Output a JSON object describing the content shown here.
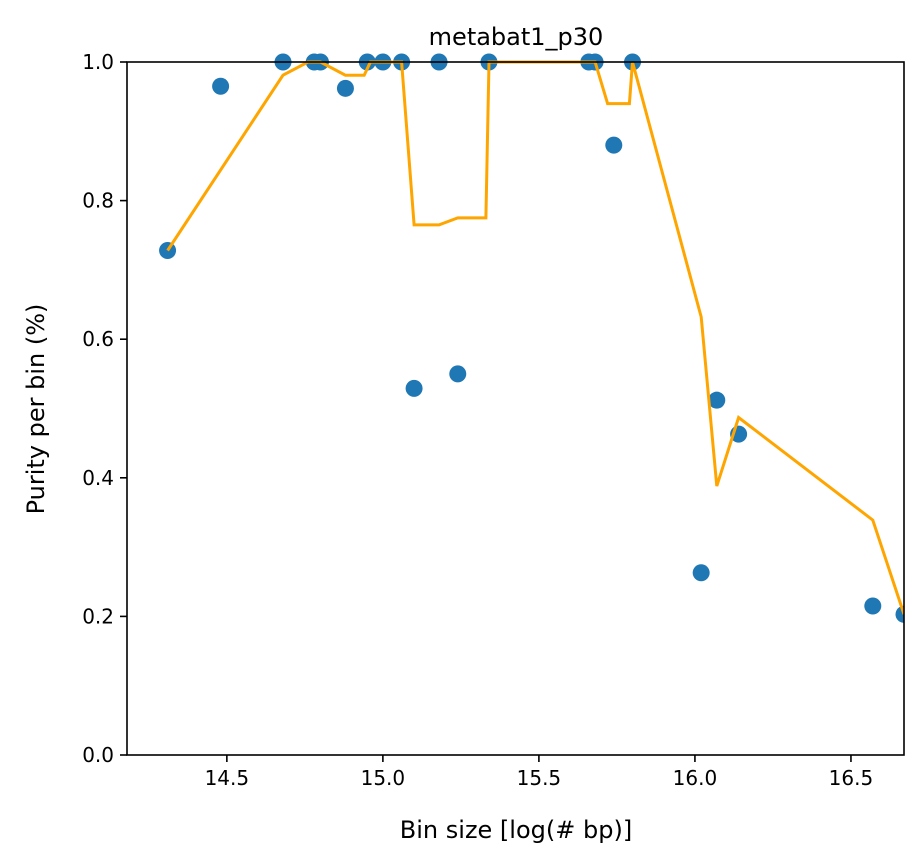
{
  "chart_data": {
    "type": "scatter",
    "title": "metabat1_p30",
    "xlabel": "Bin size [log(# bp)]",
    "ylabel": "Purity per bin (%)",
    "xlim": [
      14.18,
      16.67
    ],
    "ylim": [
      0.0,
      1.0
    ],
    "xticks": [
      14.5,
      15.0,
      15.5,
      16.0,
      16.5
    ],
    "xtick_labels": [
      "14.5",
      "15.0",
      "15.5",
      "16.0",
      "16.5"
    ],
    "yticks": [
      0.0,
      0.2,
      0.4,
      0.6,
      0.8,
      1.0
    ],
    "ytick_labels": [
      "0.0",
      "0.2",
      "0.4",
      "0.6",
      "0.8",
      "1.0"
    ],
    "grid": false,
    "colors": {
      "points": "#1f77b4",
      "line": "#ffa500"
    },
    "series": [
      {
        "type": "scatter",
        "x": [
          14.31,
          14.48,
          14.68,
          14.78,
          14.8,
          14.88,
          14.95,
          15.0,
          15.06,
          15.1,
          15.18,
          15.24,
          15.34,
          15.66,
          15.68,
          15.74,
          15.8,
          16.02,
          16.07,
          16.14,
          16.57,
          16.67
        ],
        "y": [
          0.728,
          0.965,
          1.0,
          1.0,
          1.0,
          0.962,
          1.0,
          1.0,
          1.0,
          0.529,
          1.0,
          0.55,
          1.0,
          1.0,
          1.0,
          0.88,
          1.0,
          0.263,
          0.512,
          0.463,
          0.215,
          0.203
        ]
      },
      {
        "type": "line",
        "x": [
          14.31,
          14.68,
          14.76,
          14.8,
          14.88,
          14.94,
          14.96,
          15.0,
          15.06,
          15.1,
          15.18,
          15.24,
          15.33,
          15.34,
          15.66,
          15.68,
          15.72,
          15.79,
          15.8,
          16.02,
          16.07,
          16.14,
          16.57,
          16.67
        ],
        "y": [
          0.728,
          0.981,
          1.0,
          1.0,
          0.981,
          0.981,
          1.0,
          1.0,
          1.0,
          0.765,
          0.765,
          0.775,
          0.775,
          1.0,
          1.0,
          1.0,
          0.94,
          0.94,
          1.0,
          0.632,
          0.388,
          0.487,
          0.339,
          0.203
        ]
      }
    ]
  }
}
